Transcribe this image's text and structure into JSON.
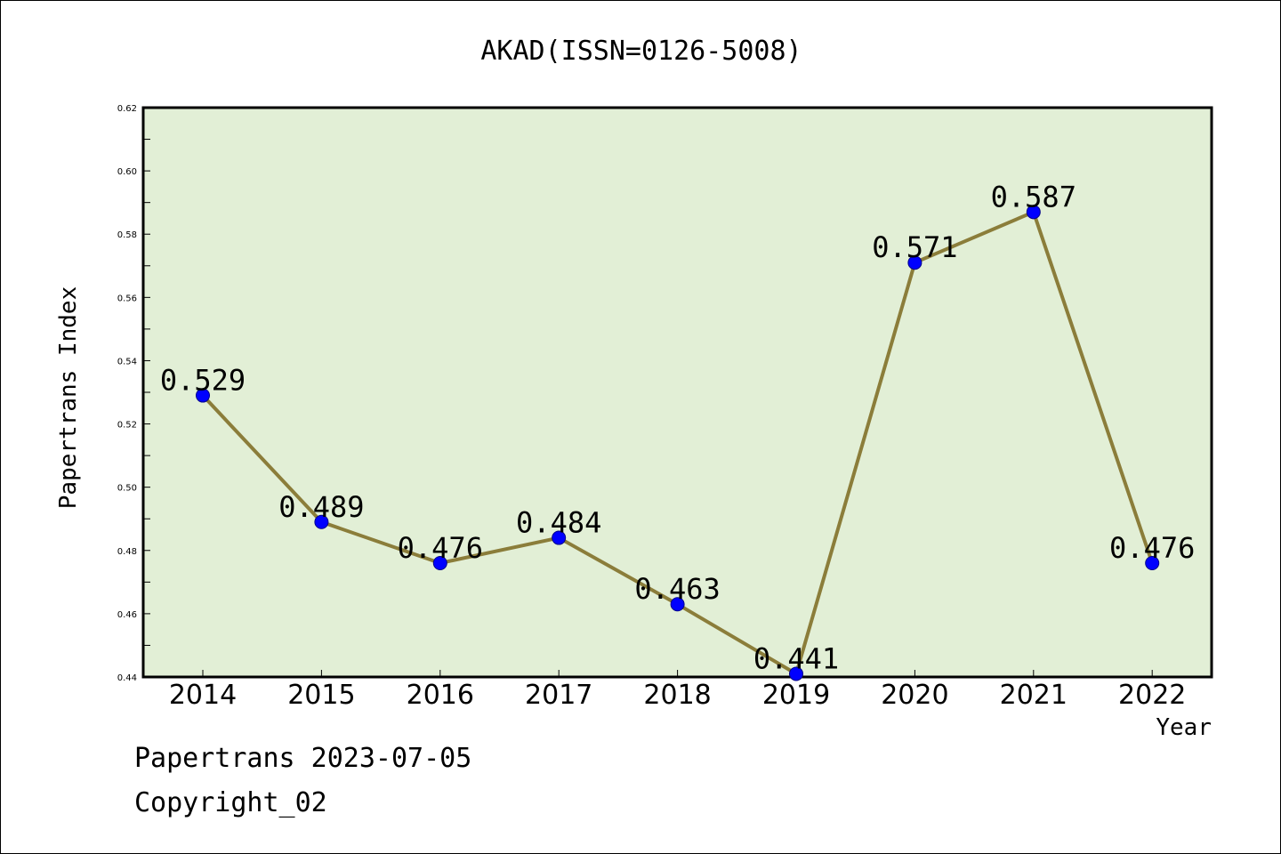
{
  "chart_data": {
    "type": "line",
    "title": "AKAD(ISSN=0126-5008)",
    "xlabel": "Year",
    "ylabel": "Papertrans Index",
    "ylim": [
      0.44,
      0.62
    ],
    "yticks": [
      "0.44",
      "0.46",
      "0.48",
      "0.50",
      "0.52",
      "0.54",
      "0.56",
      "0.58",
      "0.60",
      "0.62"
    ],
    "categories": [
      "2014",
      "2015",
      "2016",
      "2017",
      "2018",
      "2019",
      "2020",
      "2021",
      "2022"
    ],
    "values": [
      0.529,
      0.489,
      0.476,
      0.484,
      0.463,
      0.441,
      0.571,
      0.587,
      0.476
    ],
    "data_labels": [
      "0.529",
      "0.489",
      "0.476",
      "0.484",
      "0.463",
      "0.441",
      "0.571",
      "0.587",
      "0.476"
    ],
    "grid": false,
    "colors": {
      "plot_bg": "#e2efd6",
      "line": "#8b7d3a",
      "marker": "#0000ff"
    }
  },
  "footer": {
    "line1": "Papertrans 2023-07-05",
    "line2": "Copyright_02"
  }
}
